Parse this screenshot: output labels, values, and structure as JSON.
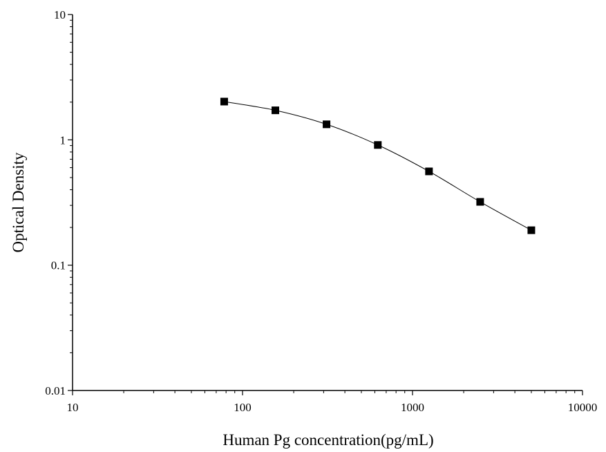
{
  "chart_data": {
    "type": "scatter",
    "title": "",
    "xlabel": "Human Pg concentration(pg/mL)",
    "ylabel": "Optical Density",
    "x_scale": "log",
    "y_scale": "log",
    "xlim": [
      10,
      10000
    ],
    "ylim": [
      0.01,
      10
    ],
    "x_tick_labels": [
      "10",
      "100",
      "1000",
      "10000"
    ],
    "y_tick_labels": [
      "0.01",
      "0.1",
      "1",
      "10"
    ],
    "grid": false,
    "legend": "none",
    "marker": "square",
    "series": [
      {
        "x": [
          78,
          156,
          312,
          625,
          1250,
          2500,
          5000
        ],
        "y": [
          2.02,
          1.72,
          1.33,
          0.91,
          0.56,
          0.32,
          0.19
        ],
        "fit_line": true
      }
    ]
  }
}
